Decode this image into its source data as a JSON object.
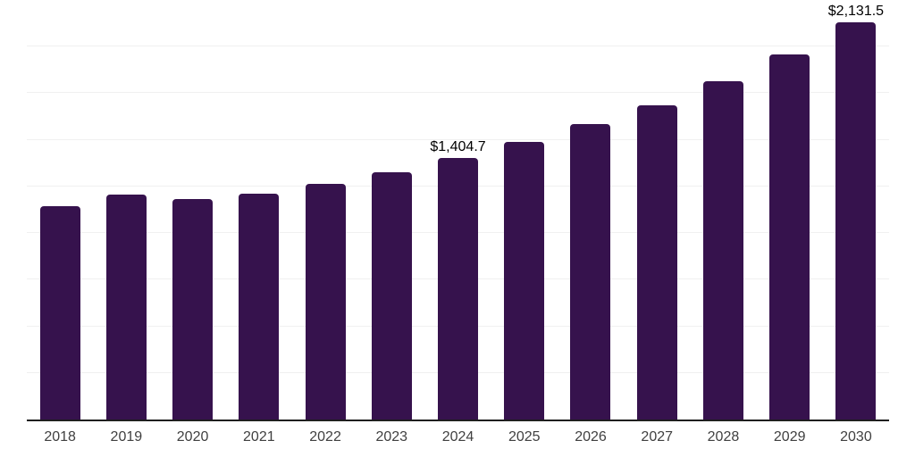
{
  "chart_data": {
    "type": "bar",
    "title": "",
    "xlabel": "",
    "ylabel": "",
    "categories": [
      "2018",
      "2019",
      "2020",
      "2021",
      "2022",
      "2023",
      "2024",
      "2025",
      "2026",
      "2027",
      "2028",
      "2029",
      "2030"
    ],
    "values": [
      1142.0,
      1207.5,
      1183.6,
      1212.3,
      1264.6,
      1326.8,
      1404.7,
      1490.8,
      1586.4,
      1687.3,
      1816.2,
      1959.7,
      2131.5
    ],
    "data_labels": {
      "2024": "$1,404.7",
      "2030": "$2,131.5"
    },
    "ylim": [
      0,
      2250
    ],
    "gridline_step": 250,
    "grid": "horizontal-only",
    "legend": "none",
    "y_tick_labels_visible": false,
    "colors": {
      "bar": "#36124D",
      "axis_line": "#1F1F1F",
      "gridline": "#F0F0F0",
      "data_label": "#000000",
      "tick_label": "#404040",
      "background": "#FFFFFF"
    }
  }
}
